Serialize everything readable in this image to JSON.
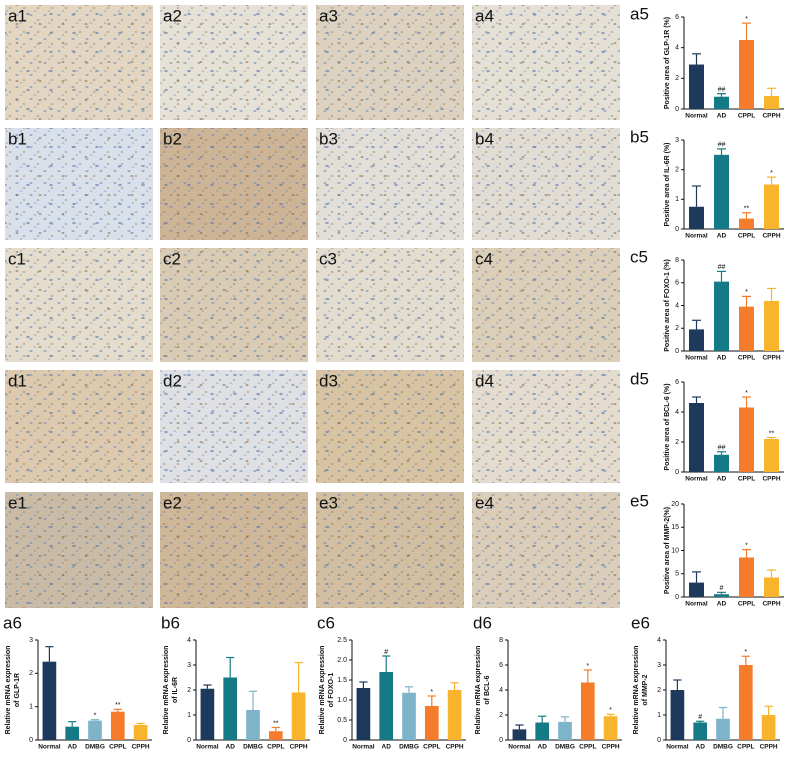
{
  "image_panels": [
    "a1",
    "a2",
    "a3",
    "a4",
    "b1",
    "b2",
    "b3",
    "b4",
    "c1",
    "c2",
    "c3",
    "c4",
    "d1",
    "d2",
    "d3",
    "d4",
    "e1",
    "e2",
    "e3",
    "e4"
  ],
  "chart_data": [
    {
      "type": "bar",
      "label": "a5",
      "ylabel": [
        "Positive area of GLP-1R (%)"
      ],
      "categories": [
        "Normal",
        "AD",
        "CPPL",
        "CPPH"
      ],
      "colors": [
        "#1d3a5c",
        "#137a86",
        "#f47c2a",
        "#f8b42c"
      ],
      "values": [
        2.9,
        0.8,
        4.5,
        0.85
      ],
      "errors": [
        0.7,
        0.2,
        1.1,
        0.5
      ],
      "annotations": [
        null,
        "##",
        "*",
        null
      ],
      "ylim": [
        0,
        6
      ],
      "yticks": [
        0,
        2,
        4,
        6
      ]
    },
    {
      "type": "bar",
      "label": "b5",
      "ylabel": [
        "Positive area of IL-6R (%)"
      ],
      "categories": [
        "Normal",
        "AD",
        "CPPL",
        "CPPH"
      ],
      "colors": [
        "#1d3a5c",
        "#137a86",
        "#f47c2a",
        "#f8b42c"
      ],
      "values": [
        0.75,
        2.5,
        0.35,
        1.5
      ],
      "errors": [
        0.7,
        0.2,
        0.2,
        0.25
      ],
      "annotations": [
        null,
        "##",
        "**",
        "*"
      ],
      "ylim": [
        0,
        3
      ],
      "yticks": [
        0,
        1,
        2,
        3
      ]
    },
    {
      "type": "bar",
      "label": "c5",
      "ylabel": [
        "Positive area of FOXO-1 (%)"
      ],
      "categories": [
        "Normal",
        "AD",
        "CPPL",
        "CPPH"
      ],
      "colors": [
        "#1d3a5c",
        "#137a86",
        "#f47c2a",
        "#f8b42c"
      ],
      "values": [
        1.9,
        6.1,
        3.9,
        4.4
      ],
      "errors": [
        0.8,
        0.9,
        0.9,
        1.1
      ],
      "annotations": [
        null,
        "##",
        "*",
        null
      ],
      "ylim": [
        0,
        8
      ],
      "yticks": [
        0,
        2,
        4,
        6,
        8
      ]
    },
    {
      "type": "bar",
      "label": "d5",
      "ylabel": [
        "Positive area of BCL-6 (%)"
      ],
      "categories": [
        "Normal",
        "AD",
        "CPPL",
        "CPPH"
      ],
      "colors": [
        "#1d3a5c",
        "#137a86",
        "#f47c2a",
        "#f8b42c"
      ],
      "values": [
        4.6,
        1.15,
        4.3,
        2.2
      ],
      "errors": [
        0.4,
        0.2,
        0.7,
        0.1
      ],
      "annotations": [
        null,
        "##",
        "*",
        "**"
      ],
      "ylim": [
        0,
        6
      ],
      "yticks": [
        0,
        2,
        4,
        6
      ]
    },
    {
      "type": "bar",
      "label": "e5",
      "ylabel": [
        "Positive area of MMP-2(%)"
      ],
      "categories": [
        "Normal",
        "AD",
        "CPPL",
        "CPPH"
      ],
      "colors": [
        "#1d3a5c",
        "#137a86",
        "#f47c2a",
        "#f8b42c"
      ],
      "values": [
        3.1,
        0.6,
        8.5,
        4.2
      ],
      "errors": [
        2.3,
        0.4,
        1.7,
        1.6
      ],
      "annotations": [
        null,
        "#",
        "*",
        null
      ],
      "ylim": [
        0,
        20
      ],
      "yticks": [
        0,
        5,
        10,
        15,
        20
      ]
    },
    {
      "type": "bar",
      "label": "a6",
      "ylabel": [
        "Relative mRNA expression",
        "of GLP-1R"
      ],
      "categories": [
        "Normal",
        "AD",
        "DMBG",
        "CPPL",
        "CPPH"
      ],
      "colors": [
        "#1d3a5c",
        "#137a86",
        "#7eb4ca",
        "#f47c2a",
        "#f8b42c"
      ],
      "values": [
        2.35,
        0.4,
        0.58,
        0.85,
        0.45
      ],
      "errors": [
        0.45,
        0.15,
        0.03,
        0.07,
        0.05
      ],
      "annotations": [
        null,
        null,
        "*",
        "**",
        null
      ],
      "ylim": [
        0,
        3
      ],
      "yticks": [
        0,
        1,
        2,
        3
      ]
    },
    {
      "type": "bar",
      "label": "b6",
      "ylabel": [
        "Relative mRNA expression",
        "of IL-6R"
      ],
      "categories": [
        "Normal",
        "AD",
        "DMBG",
        "CPPL",
        "CPPH"
      ],
      "colors": [
        "#1d3a5c",
        "#137a86",
        "#7eb4ca",
        "#f47c2a",
        "#f8b42c"
      ],
      "values": [
        2.05,
        2.5,
        1.2,
        0.35,
        1.9
      ],
      "errors": [
        0.15,
        0.8,
        0.75,
        0.15,
        1.2
      ],
      "annotations": [
        null,
        null,
        null,
        "**",
        null
      ],
      "ylim": [
        0,
        4
      ],
      "yticks": [
        0,
        1,
        2,
        3,
        4
      ]
    },
    {
      "type": "bar",
      "label": "c6",
      "ylabel": [
        "Relative mRNA expression",
        "of FOXO-1"
      ],
      "categories": [
        "Normal",
        "AD",
        "DMBG",
        "CPPL",
        "CPPH"
      ],
      "colors": [
        "#1d3a5c",
        "#137a86",
        "#7eb4ca",
        "#f47c2a",
        "#f8b42c"
      ],
      "values": [
        1.3,
        1.7,
        1.18,
        0.85,
        1.25
      ],
      "errors": [
        0.15,
        0.4,
        0.15,
        0.25,
        0.18
      ],
      "annotations": [
        null,
        "#",
        null,
        "*",
        null
      ],
      "ylim": [
        0,
        2.5
      ],
      "yticks": [
        0,
        0.5,
        {
          "value": 1,
          "label": "1.0"
        },
        1.5,
        {
          "value": 2,
          "label": "2.0"
        },
        2.5
      ]
    },
    {
      "type": "bar",
      "label": "d6",
      "ylabel": [
        "Relative mRNA expression",
        "of BCL-6"
      ],
      "categories": [
        "Normal",
        "AD",
        "DMBG",
        "CPPL",
        "CPPH"
      ],
      "colors": [
        "#1d3a5c",
        "#137a86",
        "#7eb4ca",
        "#f47c2a",
        "#f8b42c"
      ],
      "values": [
        0.85,
        1.4,
        1.45,
        4.6,
        1.9
      ],
      "errors": [
        0.35,
        0.5,
        0.4,
        1.0,
        0.15
      ],
      "annotations": [
        null,
        null,
        null,
        "*",
        "*"
      ],
      "ylim": [
        0,
        8
      ],
      "yticks": [
        0,
        2,
        4,
        6,
        8
      ]
    },
    {
      "type": "bar",
      "label": "e6",
      "ylabel": [
        "Relative mRNA expression",
        "of MMP-2"
      ],
      "categories": [
        "Normal",
        "AD",
        "DMBG",
        "CPPL",
        "CPPH"
      ],
      "colors": [
        "#1d3a5c",
        "#137a86",
        "#7eb4ca",
        "#f47c2a",
        "#f8b42c"
      ],
      "values": [
        2.0,
        0.7,
        0.85,
        3.0,
        1.0
      ],
      "errors": [
        0.4,
        0.05,
        0.45,
        0.35,
        0.35
      ],
      "annotations": [
        null,
        "#",
        null,
        "*",
        null
      ],
      "ylim": [
        0,
        4
      ],
      "yticks": [
        0,
        1,
        2,
        3,
        4
      ]
    }
  ]
}
